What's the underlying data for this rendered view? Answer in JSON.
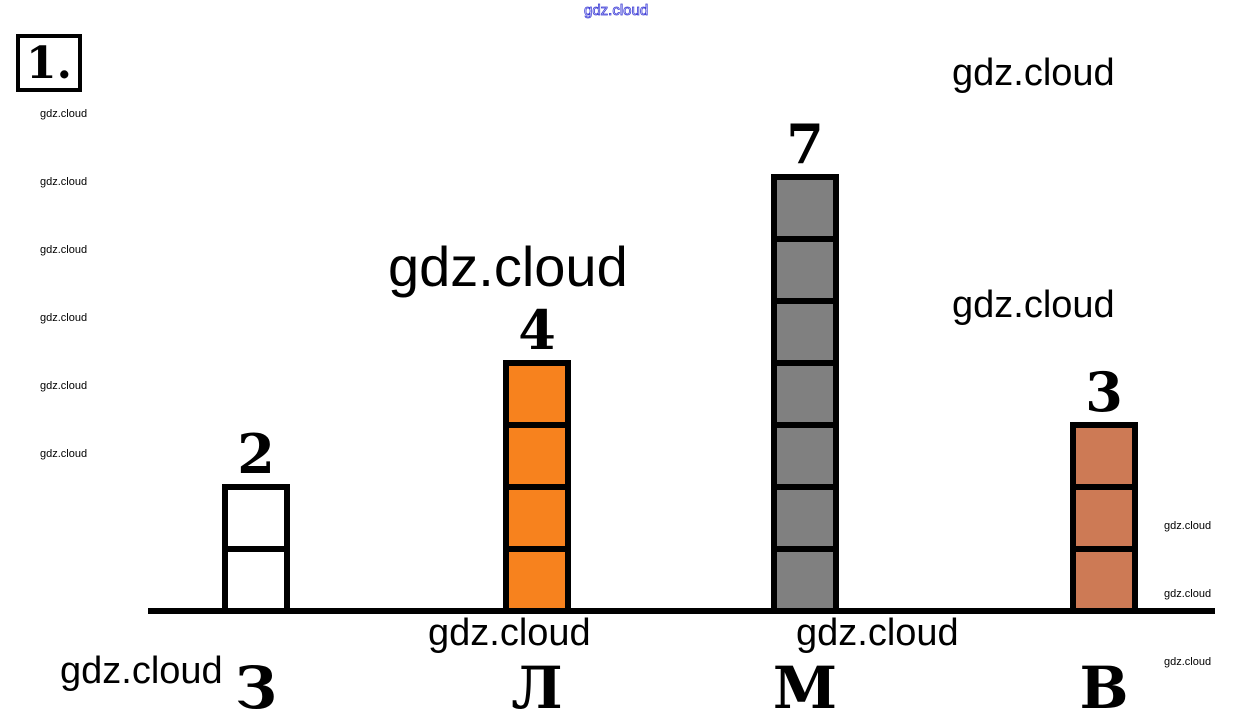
{
  "task": {
    "number": "1."
  },
  "chart_data": {
    "type": "bar",
    "categories": [
      "З",
      "Л",
      "М",
      "В"
    ],
    "values": [
      2,
      4,
      7,
      3
    ],
    "data_labels": [
      "2",
      "4",
      "7",
      "3"
    ],
    "colors": [
      "#ffffff",
      "#f7821e",
      "#808080",
      "#cd7a55"
    ],
    "ylim": [
      0,
      7
    ],
    "grid": false,
    "bar_style": "stacked unit squares with thick black outlines"
  },
  "watermarks": {
    "top": "gdz.cloud",
    "large": "gdz.cloud",
    "medium": [
      "gdz.cloud",
      "gdz.cloud",
      "gdz.cloud",
      "gdz.cloud",
      "gdz.cloud"
    ],
    "left_column": [
      "gdz.cloud",
      "gdz.cloud",
      "gdz.cloud",
      "gdz.cloud",
      "gdz.cloud",
      "gdz.cloud"
    ],
    "right_column": [
      "gdz.cloud",
      "gdz.cloud",
      "gdz.cloud"
    ]
  }
}
